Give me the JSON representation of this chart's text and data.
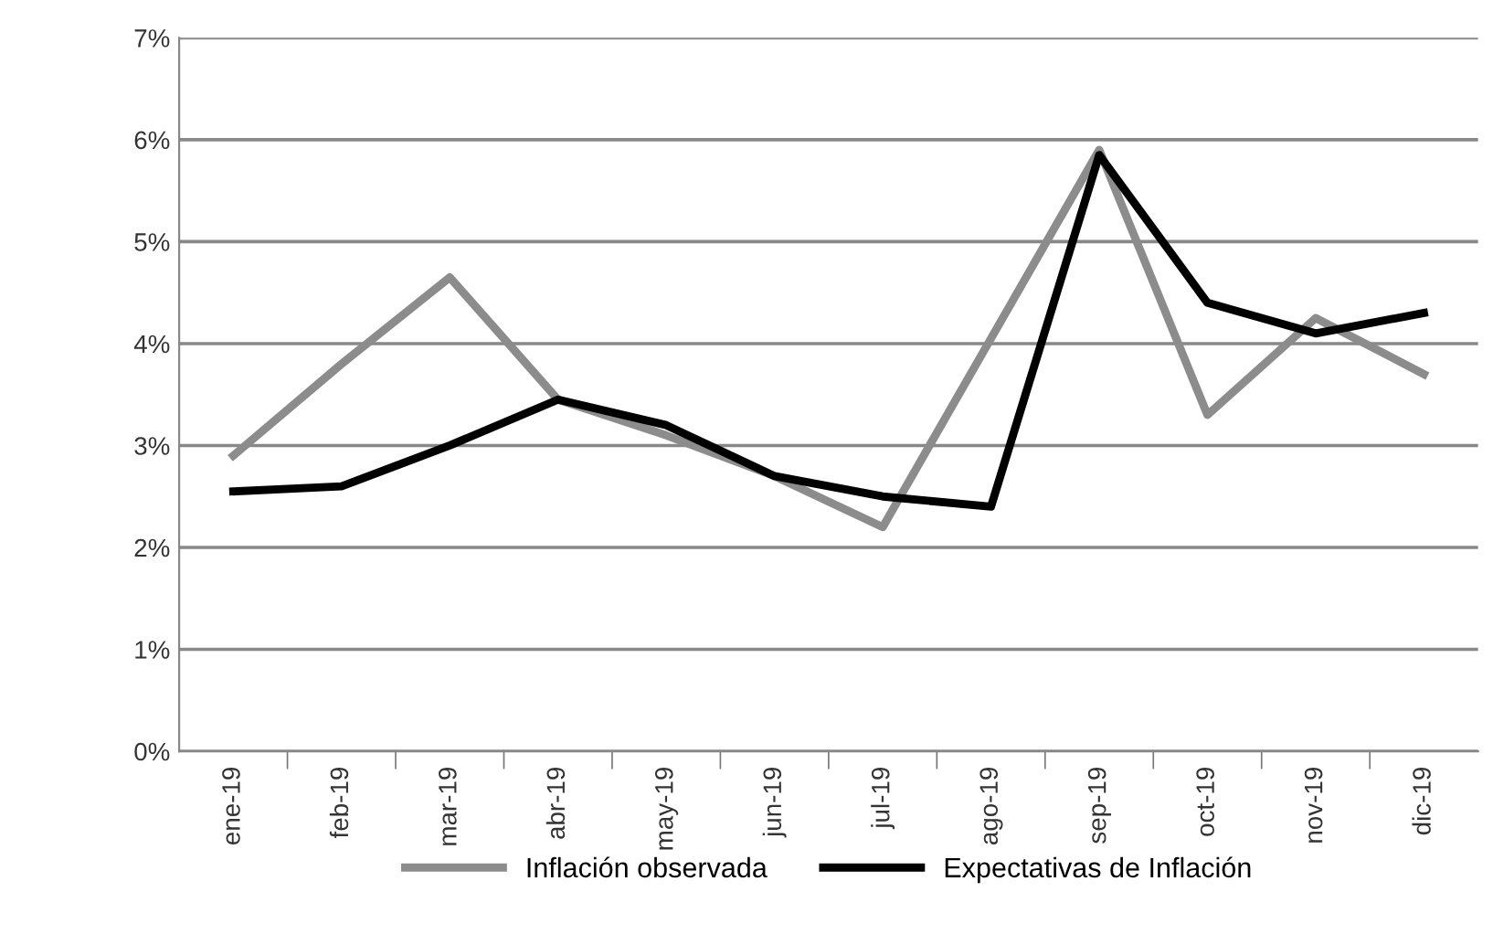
{
  "chart_data": {
    "type": "line",
    "categories": [
      "ene-19",
      "feb-19",
      "mar-19",
      "abr-19",
      "may-19",
      "jun-19",
      "jul-19",
      "ago-19",
      "sep-19",
      "oct-19",
      "nov-19",
      "dic-19"
    ],
    "series": [
      {
        "name": "Inflación observada",
        "color": "#8c8c8c",
        "values": [
          2.9,
          3.8,
          4.65,
          3.45,
          3.1,
          2.7,
          2.2,
          4.05,
          5.9,
          3.3,
          4.25,
          3.7
        ]
      },
      {
        "name": "Expectativas de Inflación",
        "color": "#000000",
        "values": [
          2.55,
          2.6,
          3.0,
          3.45,
          3.2,
          2.7,
          2.5,
          2.4,
          5.85,
          4.4,
          4.1,
          4.3
        ]
      }
    ],
    "ylim": [
      0,
      7
    ],
    "yticks": [
      {
        "value": 0,
        "label": "0%"
      },
      {
        "value": 1,
        "label": "1%"
      },
      {
        "value": 2,
        "label": "2%"
      },
      {
        "value": 3,
        "label": "3%"
      },
      {
        "value": 4,
        "label": "4%"
      },
      {
        "value": 5,
        "label": "5%"
      },
      {
        "value": 6,
        "label": "6%"
      },
      {
        "value": 7,
        "label": "7%"
      }
    ],
    "grid": "y",
    "legend": "bottom",
    "marker": "none",
    "line_style": "solid"
  }
}
